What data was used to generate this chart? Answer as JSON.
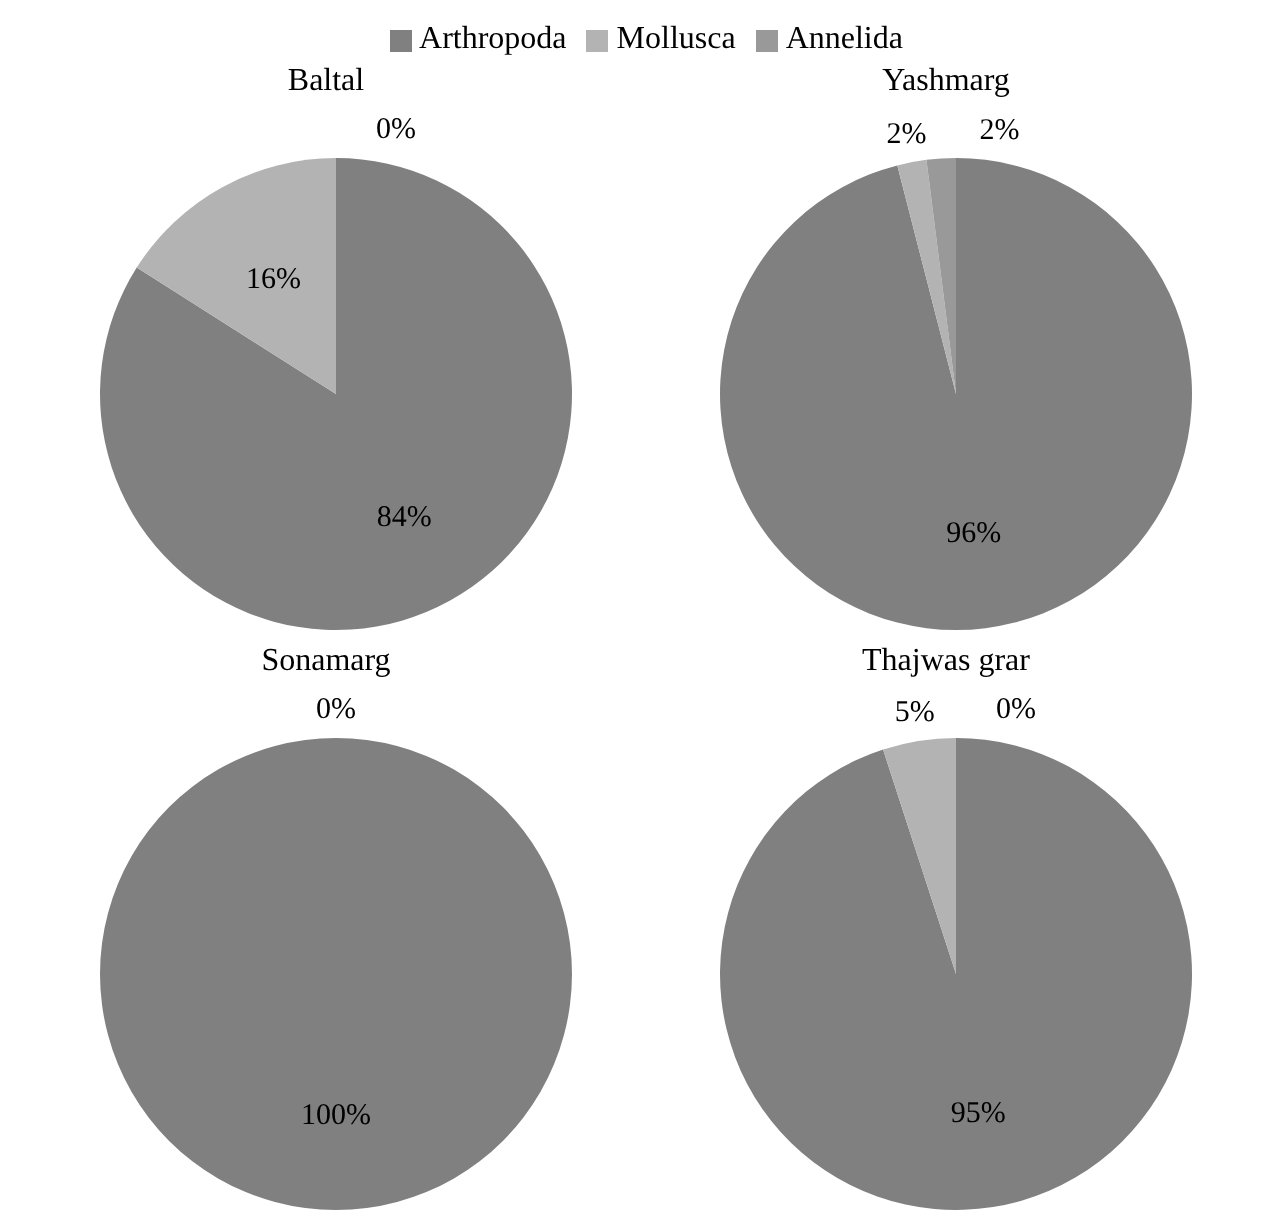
{
  "chart_data": [
    {
      "type": "pie",
      "title": "Baltal",
      "categories": [
        "Arthropoda",
        "Mollusca",
        "Annelida"
      ],
      "values": [
        84,
        16,
        0
      ],
      "colors": [
        "#808080",
        "#b3b3b3",
        "#999999"
      ],
      "value_labels": [
        "84%",
        "16%",
        "0%"
      ],
      "legend": "top"
    },
    {
      "type": "pie",
      "title": "Yashmarg",
      "categories": [
        null,
        null,
        null
      ],
      "values": [
        96,
        2,
        2
      ],
      "colors": [
        "#808080",
        "#b3b3b3",
        "#999999"
      ],
      "value_labels": [
        "96%",
        "2%",
        "2%"
      ]
    },
    {
      "type": "pie",
      "title": "Sonamarg",
      "categories": [
        null,
        null,
        null
      ],
      "values": [
        100,
        0,
        0
      ],
      "colors": [
        "#808080",
        "#b3b3b3",
        "#999999"
      ],
      "value_labels": [
        "100%",
        "0%",
        null
      ]
    },
    {
      "type": "pie",
      "title": "Thajwas grar",
      "categories": [
        null,
        null,
        null
      ],
      "values": [
        95,
        5,
        0
      ],
      "colors": [
        "#808080",
        "#b3b3b3",
        "#999999"
      ],
      "value_labels": [
        "95%",
        "5%",
        "0%"
      ]
    }
  ]
}
